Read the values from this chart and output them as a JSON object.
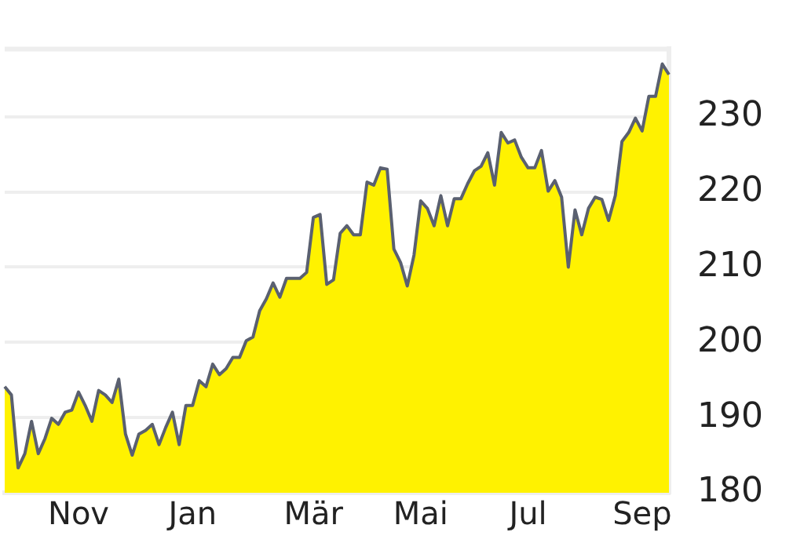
{
  "chart_data": {
    "type": "area",
    "ylim": [
      180,
      239
    ],
    "yticks": [
      180,
      190,
      200,
      210,
      220,
      230
    ],
    "grid": "y",
    "categories": [
      null,
      null,
      null,
      null,
      null,
      null,
      null,
      null,
      null,
      null,
      null,
      "Nov",
      null,
      null,
      null,
      null,
      null,
      null,
      null,
      null,
      null,
      null,
      null,
      null,
      null,
      null,
      null,
      null,
      "Jan",
      null,
      null,
      null,
      null,
      null,
      null,
      null,
      null,
      null,
      null,
      null,
      null,
      null,
      null,
      null,
      null,
      null,
      "Mär",
      null,
      null,
      null,
      null,
      null,
      null,
      null,
      null,
      null,
      null,
      null,
      null,
      null,
      null,
      null,
      "Mai",
      null,
      null,
      null,
      null,
      null,
      null,
      null,
      null,
      null,
      null,
      null,
      null,
      null,
      null,
      null,
      "Jul",
      null,
      null,
      null,
      null,
      null,
      null,
      null,
      null,
      null,
      null,
      null,
      null,
      null,
      null,
      null,
      null,
      "Sep",
      null,
      null,
      null,
      null
    ],
    "series": [
      {
        "color": "#fff200",
        "values": [
          194.1,
          193,
          183.3,
          185.2,
          189.5,
          185.2,
          187.2,
          189.9,
          189.1,
          190.7,
          191,
          193.4,
          191.6,
          189.5,
          193.6,
          193,
          192,
          195.1,
          187.8,
          185,
          187.8,
          188.3,
          189.1,
          186.4,
          188.7,
          190.7,
          186.4,
          191.6,
          191.6,
          194.9,
          194.1,
          197.1,
          195.7,
          196.5,
          198,
          198,
          200.2,
          200.7,
          204.2,
          205.8,
          207.9,
          206,
          208.5,
          208.5,
          208.5,
          209.3,
          216.6,
          217,
          207.7,
          208.3,
          214.5,
          215.5,
          214.3,
          214.3,
          221.3,
          220.9,
          223.2,
          223,
          212.4,
          210.6,
          207.5,
          211.6,
          218.8,
          217.8,
          215.5,
          219.5,
          215.5,
          219.1,
          219.1,
          221.1,
          222.8,
          223.4,
          225.2,
          220.9,
          227.9,
          226.5,
          226.9,
          224.6,
          223.2,
          223.2,
          225.5,
          220.1,
          221.5,
          219.3,
          210,
          217.6,
          214.3,
          217.8,
          219.3,
          219,
          216.2,
          219.5,
          226.7,
          227.9,
          229.8,
          228.1,
          232.7,
          232.7,
          237,
          235.6
        ]
      }
    ]
  }
}
